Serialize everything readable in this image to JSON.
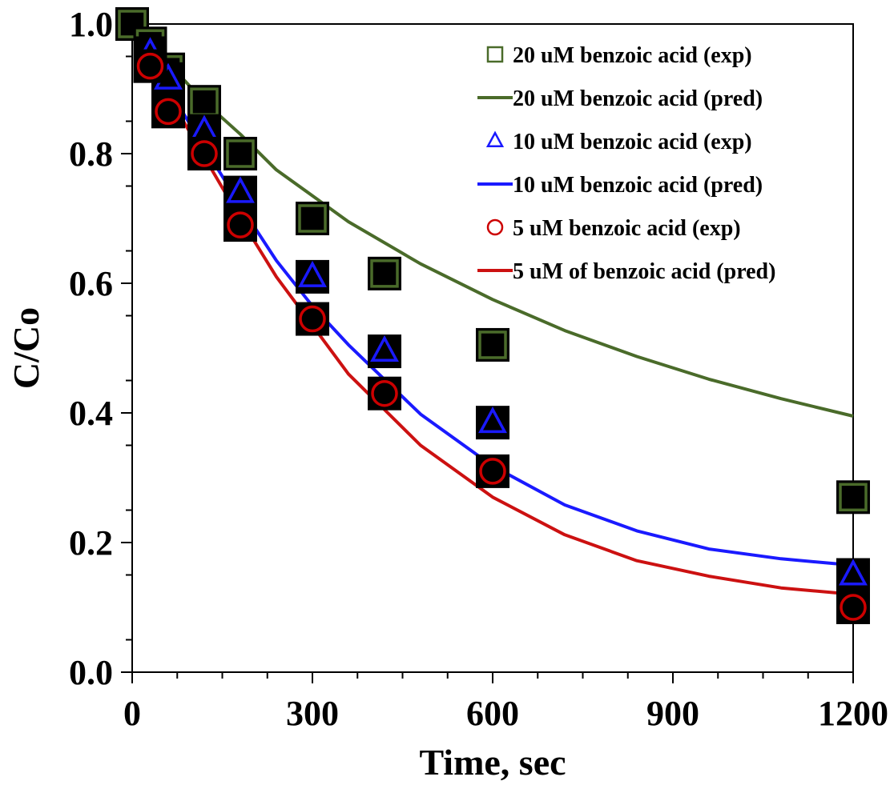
{
  "chart_data": {
    "type": "scatter",
    "xlabel": "Time, sec",
    "ylabel": "C/Co",
    "xlim": [
      0,
      1200
    ],
    "ylim": [
      0,
      1.0
    ],
    "xticks": [
      0,
      300,
      600,
      900,
      1200
    ],
    "xtick_labels": [
      "0",
      "300",
      "600",
      "900",
      "1200"
    ],
    "yticks": [
      0.0,
      0.2,
      0.4,
      0.6,
      0.8,
      1.0
    ],
    "ytick_labels": [
      "0.0",
      "0.2",
      "0.4",
      "0.6",
      "0.8",
      "1.0"
    ],
    "grid": false,
    "legend_position": "top-right",
    "series": [
      {
        "name": "20 uM benzoic acid (exp)",
        "kind": "markers",
        "marker": "square",
        "color": "#4a6b2a",
        "x": [
          0,
          30,
          60,
          120,
          180,
          300,
          420,
          600,
          1200
        ],
        "y": [
          1.0,
          0.97,
          0.93,
          0.88,
          0.8,
          0.7,
          0.615,
          0.505,
          0.27
        ]
      },
      {
        "name": "20 uM benzoic acid (pred)",
        "kind": "line",
        "color": "#4a6b2a",
        "x": [
          0,
          60,
          120,
          180,
          240,
          300,
          360,
          480,
          600,
          720,
          840,
          960,
          1080,
          1200
        ],
        "y": [
          1.0,
          0.94,
          0.88,
          0.83,
          0.775,
          0.735,
          0.695,
          0.63,
          0.575,
          0.527,
          0.487,
          0.452,
          0.422,
          0.395
        ]
      },
      {
        "name": "10 uM benzoic acid (exp)",
        "kind": "markers",
        "marker": "triangle",
        "color": "#1a1aff",
        "x": [
          30,
          60,
          120,
          180,
          300,
          420,
          600,
          1200
        ],
        "y": [
          0.955,
          0.915,
          0.835,
          0.74,
          0.61,
          0.495,
          0.385,
          0.15
        ]
      },
      {
        "name": "10 uM benzoic acid (pred)",
        "kind": "line",
        "color": "#1a1aff",
        "x": [
          0,
          60,
          120,
          180,
          240,
          300,
          360,
          480,
          600,
          720,
          840,
          960,
          1080,
          1200
        ],
        "y": [
          1.0,
          0.9,
          0.81,
          0.72,
          0.635,
          0.565,
          0.505,
          0.398,
          0.318,
          0.258,
          0.218,
          0.19,
          0.175,
          0.165
        ]
      },
      {
        "name": "5 uM benzoic acid (exp)",
        "kind": "markers",
        "marker": "circle",
        "color": "#cc0000",
        "x": [
          30,
          60,
          120,
          180,
          300,
          420,
          600,
          1200
        ],
        "y": [
          0.935,
          0.865,
          0.8,
          0.69,
          0.545,
          0.43,
          0.31,
          0.1
        ]
      },
      {
        "name": "5 uM of benzoic acid (pred)",
        "kind": "line",
        "color": "#cc1111",
        "x": [
          0,
          60,
          120,
          180,
          240,
          300,
          360,
          480,
          600,
          720,
          840,
          960,
          1080,
          1200
        ],
        "y": [
          1.0,
          0.89,
          0.795,
          0.7,
          0.61,
          0.535,
          0.46,
          0.35,
          0.27,
          0.212,
          0.172,
          0.148,
          0.13,
          0.12
        ]
      }
    ]
  }
}
